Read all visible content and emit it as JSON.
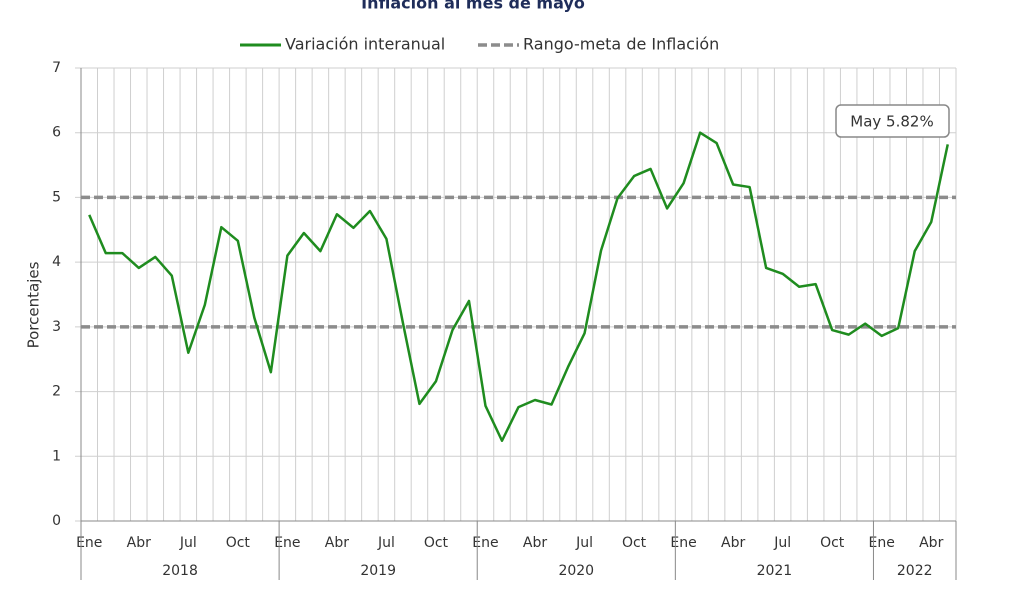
{
  "chart_data": {
    "type": "line",
    "title": "Inflación al mes de mayo",
    "y_label": "Porcentajes",
    "categories": [
      "Ene",
      null,
      null,
      "Abr",
      null,
      null,
      "Jul",
      null,
      null,
      "Oct",
      null,
      null,
      "Ene",
      null,
      null,
      "Abr",
      null,
      null,
      "Jul",
      null,
      null,
      "Oct",
      null,
      null,
      "Ene",
      null,
      null,
      "Abr",
      null,
      null,
      "Jul",
      null,
      null,
      "Oct",
      null,
      null,
      "Ene",
      null,
      null,
      "Abr",
      null,
      null,
      "Jul",
      null,
      null,
      "Oct",
      null,
      null,
      "Ene",
      null,
      null,
      "Abr",
      null
    ],
    "years": [
      "2018",
      "2019",
      "2020",
      "2021",
      "2022"
    ],
    "series": [
      {
        "name": "Variación interanual",
        "color": "#1f8c1f",
        "values": [
          4.73,
          4.14,
          4.14,
          3.91,
          4.08,
          3.79,
          2.6,
          3.34,
          4.54,
          4.33,
          3.14,
          2.3,
          4.1,
          4.45,
          4.17,
          4.74,
          4.53,
          4.79,
          4.36,
          3.06,
          1.81,
          2.16,
          2.95,
          3.4,
          1.78,
          1.24,
          1.76,
          1.87,
          1.8,
          2.38,
          2.9,
          4.18,
          4.99,
          5.33,
          5.44,
          4.83,
          5.22,
          6.0,
          5.84,
          5.2,
          5.16,
          3.91,
          3.82,
          3.62,
          3.66,
          2.95,
          2.88,
          3.05,
          2.86,
          2.98,
          4.17,
          4.62,
          5.82
        ]
      }
    ],
    "target_range": {
      "name": "Rango-meta de Inflación",
      "color": "#8c8c8c",
      "values": [
        3,
        5
      ]
    },
    "annotation": {
      "text": "May 5.82%",
      "index": 52
    },
    "ylim": [
      0,
      7
    ],
    "yticks": [
      0,
      1,
      2,
      3,
      4,
      5,
      6,
      7
    ],
    "grid": true
  }
}
